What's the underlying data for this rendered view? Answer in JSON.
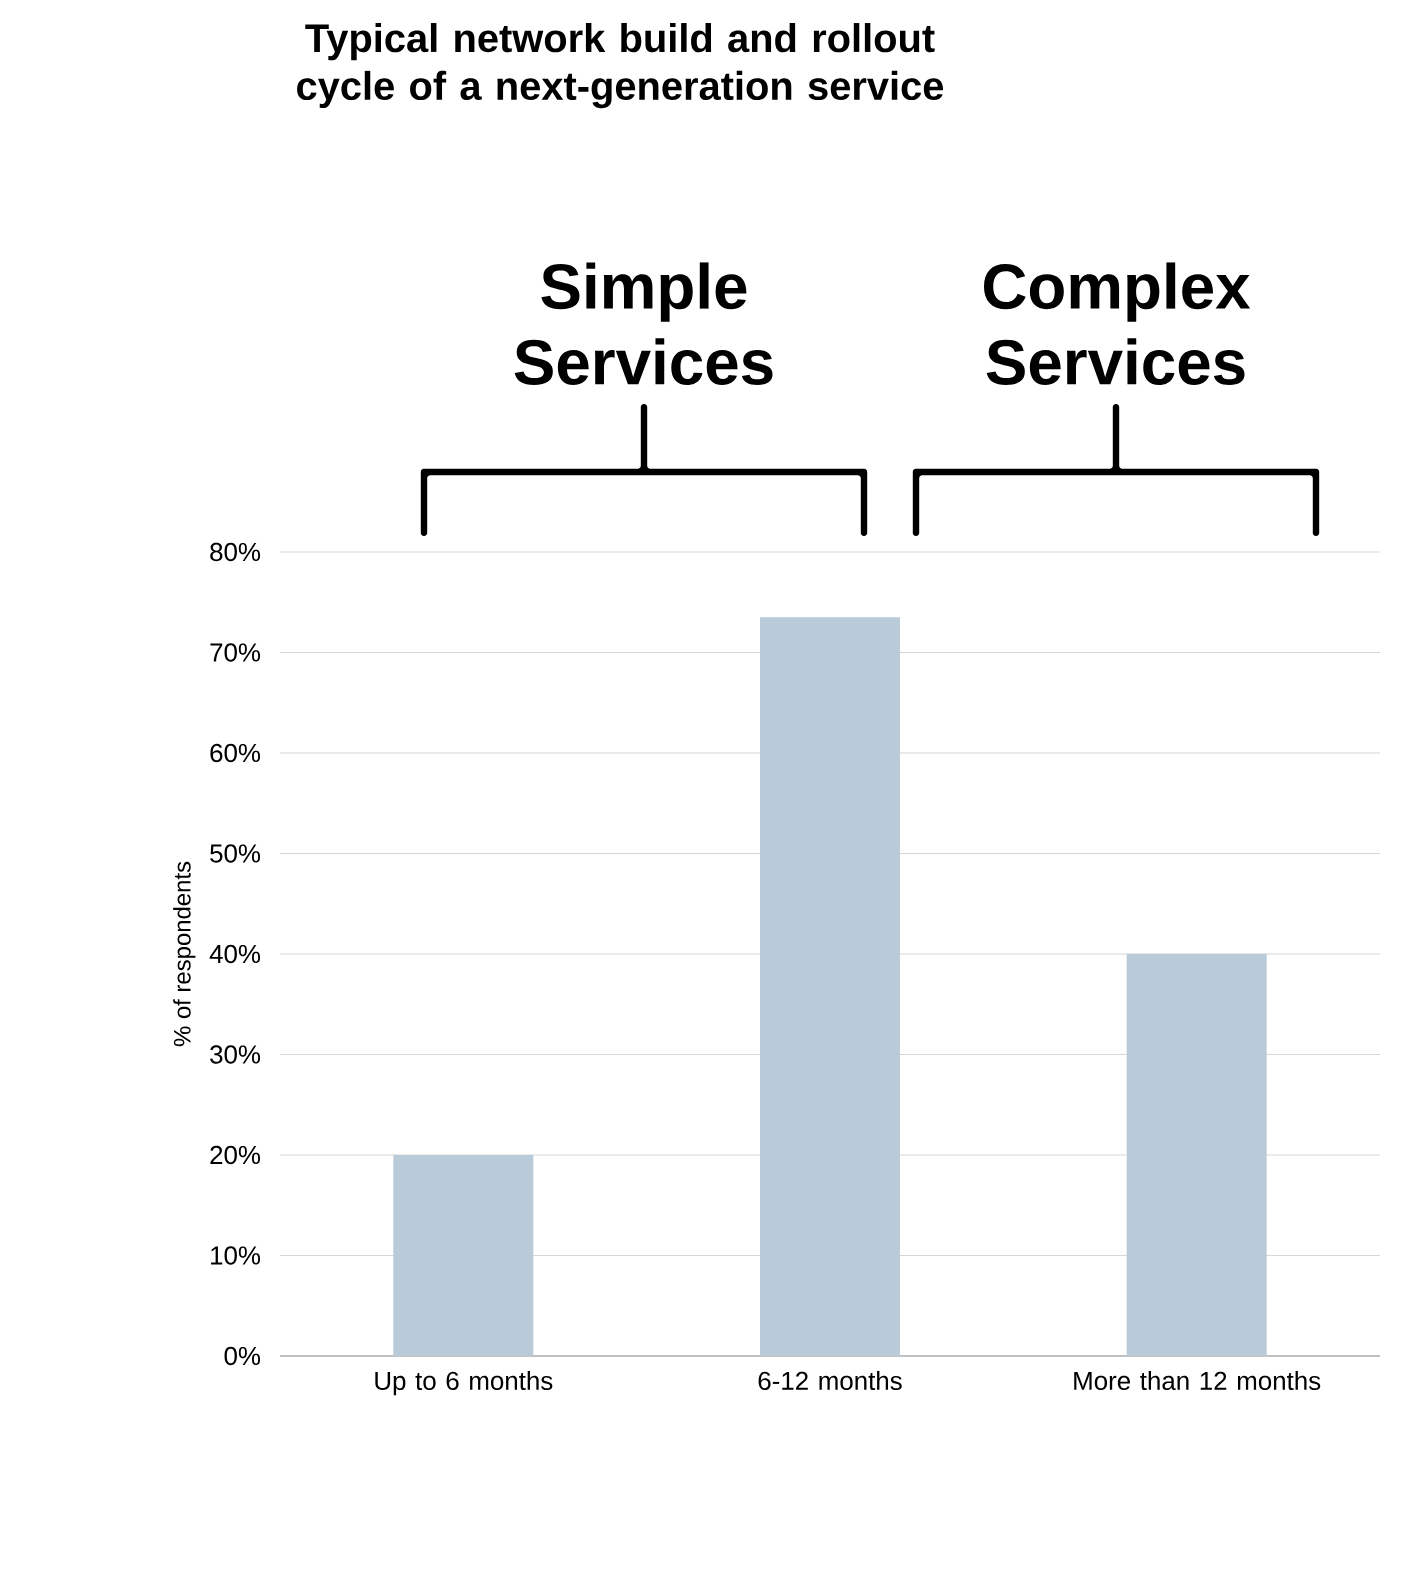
{
  "chart_data": {
    "type": "bar",
    "title": "Typical network build and rollout cycle of a next-generation service",
    "annotations": [
      "Simple Services",
      "Complex Services"
    ],
    "ylabel": "% of respondents",
    "categories": [
      "Up to 6 months",
      "6-12 months",
      "More than 12 months"
    ],
    "values": [
      20,
      73.5,
      40
    ],
    "color": "#b9cad8",
    "ylim": [
      0,
      80
    ],
    "yticks": [
      {
        "value": 0,
        "label": "0%"
      },
      {
        "value": 10,
        "label": "10%"
      },
      {
        "value": 20,
        "label": "20%"
      },
      {
        "value": 30,
        "label": "30%"
      },
      {
        "value": 40,
        "label": "40%"
      },
      {
        "value": 50,
        "label": "50%"
      },
      {
        "value": 60,
        "label": "60%"
      },
      {
        "value": 70,
        "label": "70%"
      },
      {
        "value": 80,
        "label": "80%"
      }
    ],
    "grid": "y"
  }
}
